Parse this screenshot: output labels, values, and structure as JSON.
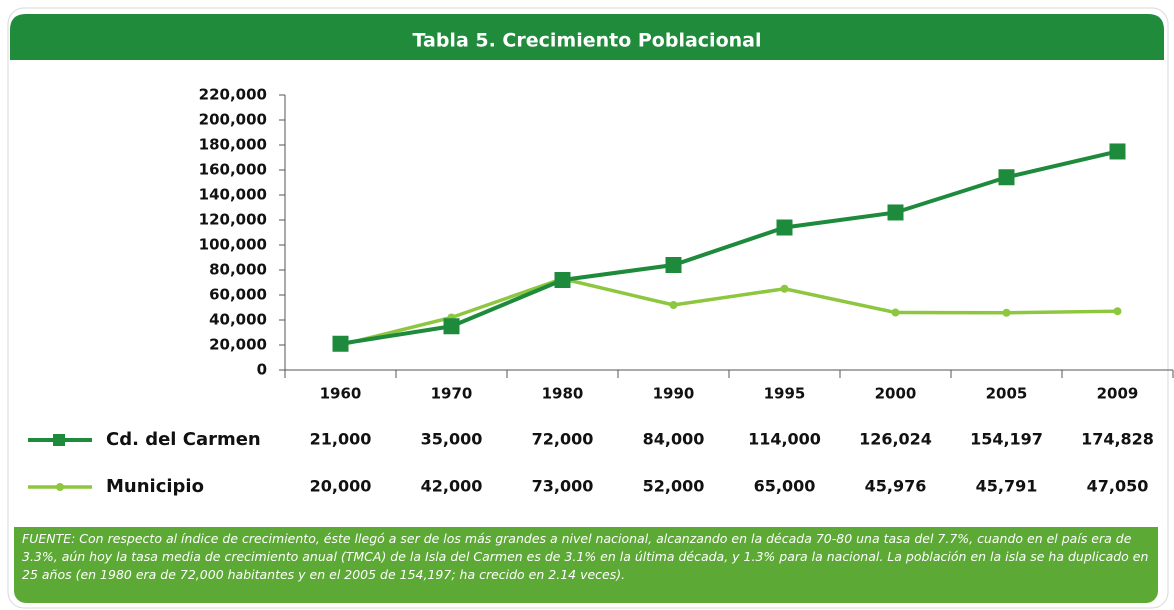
{
  "chart_data": {
    "type": "line",
    "title": "Tabla 5. Crecimiento Poblacional",
    "categories": [
      "1960",
      "1970",
      "1980",
      "1990",
      "1995",
      "2000",
      "2005",
      "2009"
    ],
    "series": [
      {
        "name": "Cd. del Carmen",
        "color": "#1e8a3c",
        "values": [
          21000,
          35000,
          72000,
          84000,
          114000,
          126024,
          154197,
          174828
        ],
        "value_labels": [
          "21,000",
          "35,000",
          "72,000",
          "84,000",
          "114,000",
          "126,024",
          "154,197",
          "174,828"
        ]
      },
      {
        "name": "Municipio",
        "color": "#8dc63f",
        "values": [
          20000,
          42000,
          73000,
          52000,
          65000,
          45976,
          45791,
          47050
        ],
        "value_labels": [
          "20,000",
          "42,000",
          "73,000",
          "52,000",
          "65,000",
          "45,976",
          "45,791",
          "47,050"
        ]
      }
    ],
    "ylim": [
      0,
      220000
    ],
    "yticks": [
      0,
      {
        "value": 20000,
        "label": "20,000"
      },
      {
        "value": 40000,
        "label": "40,000"
      },
      {
        "value": 60000,
        "label": "60,000"
      },
      {
        "value": 80000,
        "label": "80,000"
      },
      {
        "value": 100000,
        "label": "100,000"
      },
      {
        "value": 120000,
        "label": "120,000"
      },
      {
        "value": 140000,
        "label": "140,000"
      },
      {
        "value": 160000,
        "label": "160,000"
      },
      {
        "value": 180000,
        "label": "180,000"
      },
      {
        "value": 200000,
        "label": "200,000"
      },
      {
        "value": 220000,
        "label": "220,000"
      }
    ],
    "footnote": "FUENTE: Con respecto al índice de crecimiento, éste llegó a ser de los más grandes a nivel nacional, alcanzando en la década 70-80 una tasa del 7.7%, cuando en el país era de 3.3%, aún hoy la tasa media de crecimiento anual (TMCA) de la Isla del Carmen es de 3.1% en la última década,  y  1.3% para la nacional. La población en la isla  se ha duplicado en 25 años (en 1980 era de 72,000 habitantes y en el 2005 de 154,197; ha crecido en 2.14 veces)."
  }
}
